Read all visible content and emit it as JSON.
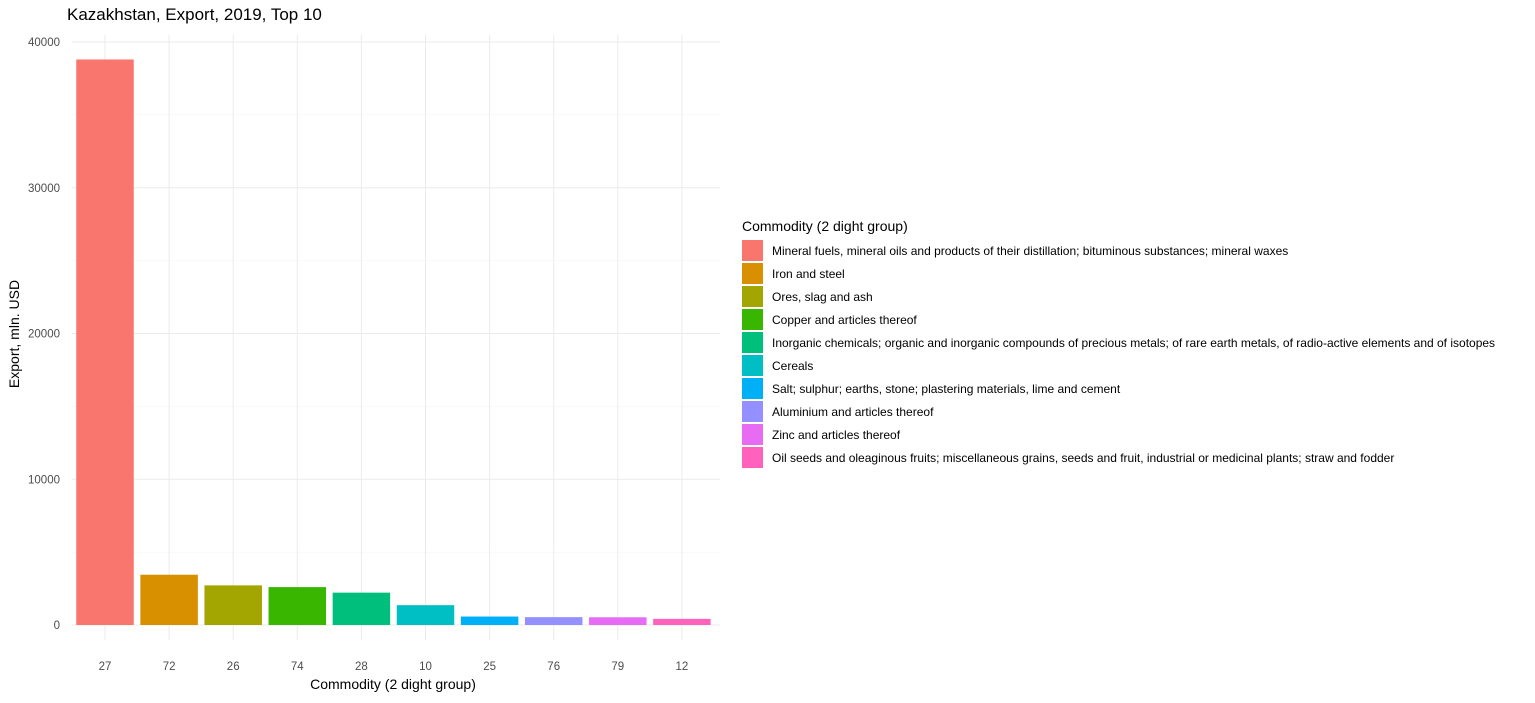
{
  "chart_data": {
    "type": "bar",
    "title": "Kazakhstan, Export, 2019, Top 10",
    "xlabel": "Commodity (2 dight group)",
    "ylabel": "Export, mln. USD",
    "ylim": [
      0,
      40000
    ],
    "yticks": [
      "0",
      "10000",
      "20000",
      "30000",
      "40000"
    ],
    "categories": [
      "27",
      "72",
      "26",
      "74",
      "28",
      "10",
      "25",
      "76",
      "79",
      "12"
    ],
    "values": [
      38800,
      3450,
      2720,
      2600,
      2220,
      1360,
      580,
      540,
      530,
      420
    ],
    "grid": true,
    "legend": {
      "position": "right",
      "title": "Commodity (2 dight group)",
      "entries": [
        "Mineral fuels, mineral oils and products of their distillation; bituminous substances; mineral waxes",
        "Iron and steel",
        "Ores, slag and ash",
        "Copper and articles thereof",
        "Inorganic chemicals; organic and inorganic compounds of precious metals; of rare earth metals, of radio-active elements and of isotopes",
        "Cereals",
        "Salt; sulphur; earths, stone; plastering materials, lime and cement",
        "Aluminium and articles thereof",
        "Zinc and articles thereof",
        "Oil seeds and oleaginous fruits; miscellaneous grains, seeds and fruit, industrial or medicinal plants; straw and fodder"
      ]
    },
    "colors": [
      "#F8766D",
      "#D89000",
      "#A3A500",
      "#39B600",
      "#00BF7D",
      "#00BFC4",
      "#00B0F6",
      "#9590FF",
      "#E76BF3",
      "#FF62BC"
    ]
  }
}
